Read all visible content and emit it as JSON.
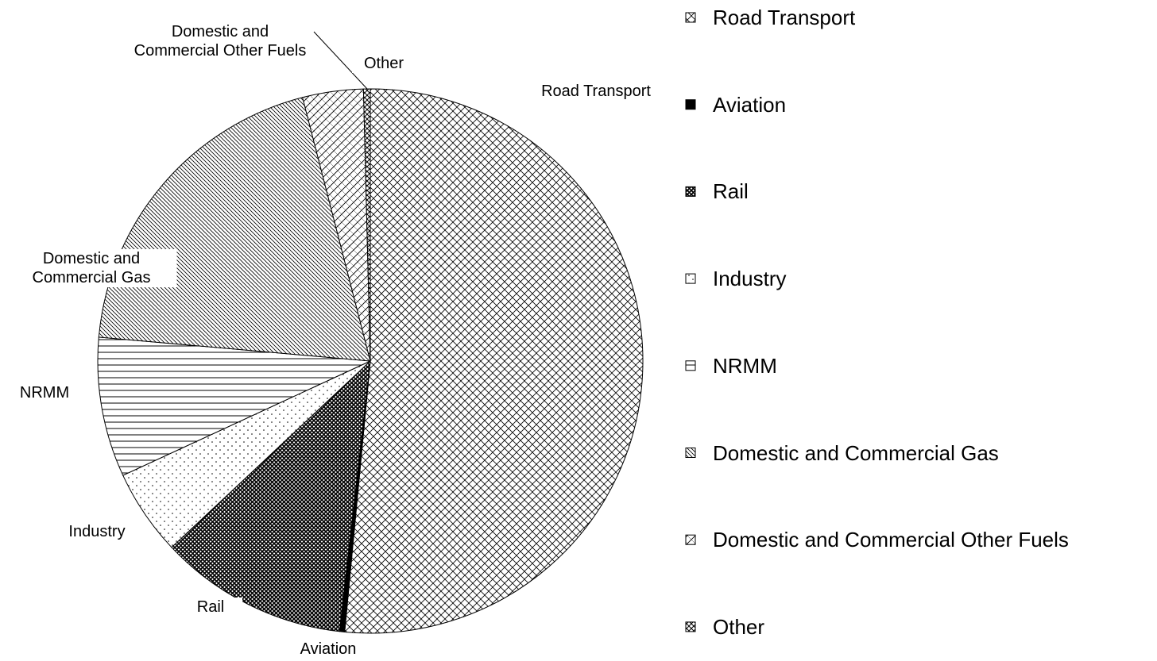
{
  "chart_data": {
    "type": "pie",
    "categories": [
      "Road Transport",
      "Aviation",
      "Rail",
      "Industry",
      "NRMM",
      "Domestic and Commercial Gas",
      "Domestic and Commercial Other Fuels",
      "Other"
    ],
    "values": [
      51.5,
      0.3,
      11.2,
      5.1,
      8.3,
      19.6,
      3.6,
      0.4
    ]
  }
}
